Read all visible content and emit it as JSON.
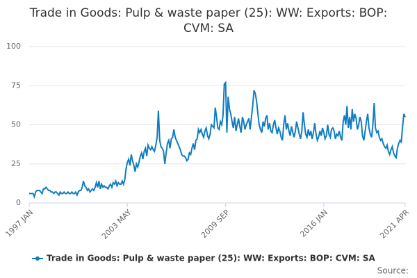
{
  "chart_data": {
    "type": "line",
    "title": "Trade in Goods: Pulp & waste paper (25): WW: Exports: BOP: CVM: SA",
    "source": "Source:",
    "categories": [
      "1997 JAN",
      null,
      null,
      null,
      null,
      null,
      null,
      null,
      null,
      null,
      null,
      null,
      null,
      null,
      null,
      null,
      null,
      null,
      null,
      null,
      null,
      null,
      null,
      null,
      null,
      null,
      null,
      null,
      null,
      null,
      null,
      null,
      null,
      null,
      null,
      null,
      null,
      null,
      null,
      null,
      null,
      null,
      null,
      null,
      null,
      null,
      null,
      null,
      null,
      null,
      null,
      null,
      null,
      null,
      null,
      null,
      null,
      null,
      null,
      null,
      null,
      null,
      null,
      null,
      null,
      null,
      null,
      null,
      null,
      null,
      null,
      null,
      null,
      null,
      null,
      null,
      "2003 MAY",
      null,
      null,
      null,
      null,
      null,
      null,
      null,
      null,
      null,
      null,
      null,
      null,
      null,
      null,
      null,
      null,
      null,
      null,
      null,
      null,
      null,
      null,
      null,
      null,
      null,
      null,
      null,
      null,
      null,
      null,
      null,
      null,
      null,
      null,
      null,
      null,
      null,
      null,
      null,
      null,
      null,
      null,
      null,
      null,
      null,
      null,
      null,
      null,
      null,
      null,
      null,
      null,
      null,
      null,
      null,
      null,
      null,
      null,
      null,
      null,
      null,
      null,
      null,
      null,
      null,
      null,
      null,
      null,
      null,
      null,
      null,
      null,
      null,
      null,
      null,
      "2009 SEP",
      null,
      null,
      null,
      null,
      null,
      null,
      null,
      null,
      null,
      null,
      null,
      null,
      null,
      null,
      null,
      null,
      null,
      null,
      null,
      null,
      null,
      null,
      null,
      null,
      null,
      null,
      null,
      null,
      null,
      null,
      null,
      null,
      null,
      null,
      null,
      null,
      null,
      null,
      null,
      null,
      null,
      null,
      null,
      null,
      null,
      null,
      null,
      null,
      null,
      null,
      null,
      null,
      null,
      null,
      null,
      null,
      null,
      null,
      null,
      null,
      null,
      null,
      null,
      null,
      null,
      null,
      null,
      null,
      null,
      null,
      null,
      null,
      null,
      null,
      null,
      "2016 JAN",
      null,
      null,
      null,
      null,
      null,
      null,
      null,
      null,
      null,
      null,
      null,
      null,
      null,
      null,
      null,
      null,
      null,
      null,
      null,
      null,
      null,
      null,
      null,
      null,
      null,
      null,
      null,
      null,
      null,
      null,
      null,
      null,
      null,
      null,
      null,
      null,
      null,
      null,
      null,
      null,
      null,
      null,
      null,
      null,
      null,
      null,
      null,
      null,
      null,
      null,
      null,
      null,
      null,
      null,
      null,
      null,
      null,
      null,
      null,
      null,
      null,
      null,
      "2021 APR"
    ],
    "series": [
      {
        "name": "Trade in Goods: Pulp & waste paper (25): WW: Exports: BOP: CVM: SA",
        "color": "#0f7dc2",
        "values": [
          6,
          6,
          6,
          6,
          4,
          7,
          8,
          8,
          8,
          7,
          6,
          9,
          9,
          10,
          9,
          8,
          8,
          7,
          7,
          6,
          7,
          7,
          6,
          5,
          7,
          6,
          6,
          7,
          6,
          6,
          7,
          6,
          6,
          7,
          6,
          6,
          7,
          5,
          7,
          8,
          8,
          10,
          14,
          11,
          10,
          8,
          9,
          7,
          8,
          9,
          8,
          10,
          13,
          10,
          14,
          9,
          12,
          10,
          11,
          10,
          10,
          9,
          11,
          12,
          10,
          13,
          12,
          14,
          11,
          13,
          12,
          12,
          14,
          12,
          15,
          22,
          26,
          28,
          24,
          31,
          27,
          24,
          20,
          25,
          23,
          26,
          30,
          32,
          28,
          33,
          35,
          30,
          37,
          35,
          34,
          36,
          34,
          33,
          37,
          42,
          59,
          40,
          36,
          35,
          33,
          25,
          32,
          38,
          40,
          35,
          41,
          42,
          47,
          42,
          40,
          38,
          36,
          34,
          31,
          30,
          30,
          29,
          27,
          28,
          32,
          31,
          35,
          38,
          34,
          40,
          41,
          47,
          45,
          47,
          44,
          42,
          46,
          48,
          43,
          41,
          44,
          50,
          49,
          48,
          61,
          55,
          48,
          47,
          52,
          50,
          56,
          76,
          77,
          45,
          68,
          60,
          57,
          52,
          48,
          55,
          46,
          50,
          54,
          49,
          45,
          55,
          52,
          47,
          50,
          52,
          54,
          47,
          55,
          62,
          72,
          70,
          65,
          57,
          50,
          47,
          45,
          52,
          49,
          54,
          56,
          47,
          51,
          46,
          45,
          50,
          53,
          48,
          44,
          48,
          46,
          42,
          40,
          50,
          56,
          47,
          51,
          46,
          43,
          49,
          45,
          42,
          46,
          52,
          48,
          44,
          41,
          46,
          58,
          50,
          44,
          42,
          47,
          43,
          46,
          41,
          45,
          51,
          44,
          40,
          42,
          46,
          43,
          48,
          45,
          41,
          43,
          50,
          44,
          42,
          47,
          48,
          46,
          41,
          44,
          43,
          46,
          42,
          40,
          52,
          56,
          50,
          62,
          48,
          55,
          47,
          60,
          52,
          57,
          54,
          47,
          50,
          55,
          52,
          43,
          40,
          46,
          52,
          57,
          48,
          44,
          42,
          50,
          64,
          48,
          45,
          46,
          42,
          40,
          41,
          38,
          36,
          35,
          37,
          33,
          31,
          34,
          36,
          32,
          30,
          29,
          35,
          38,
          40,
          39,
          49,
          57,
          55
        ]
      }
    ],
    "ylim": [
      0,
      100
    ],
    "yticks": [
      0,
      25,
      50,
      75,
      100
    ],
    "grid": true
  }
}
